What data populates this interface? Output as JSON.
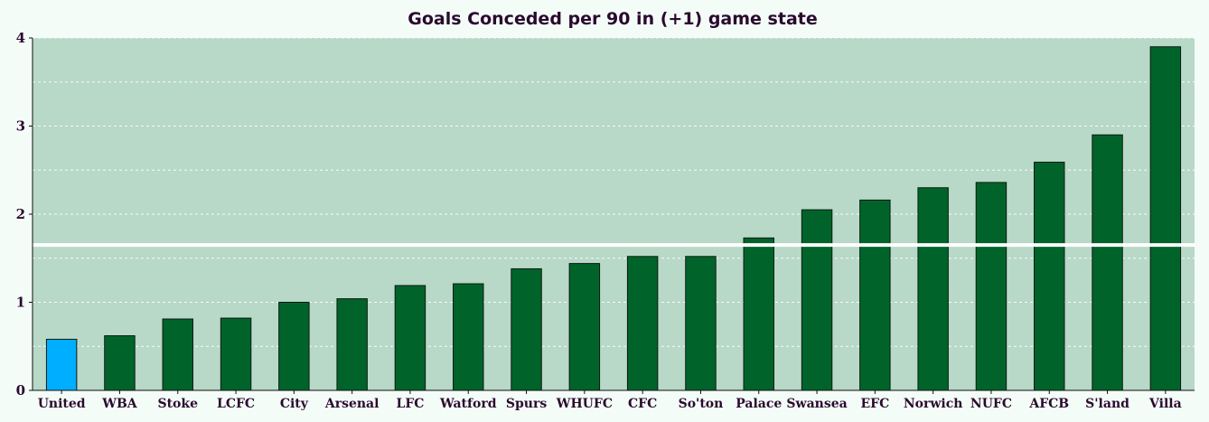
{
  "chart_data": {
    "type": "bar",
    "title": "Goals Conceded per 90 in (+1) game state",
    "xlabel": "",
    "ylabel": "",
    "ylim": [
      0,
      4
    ],
    "yticks": [
      0,
      1,
      2,
      3,
      4
    ],
    "grid": true,
    "reference_line": 1.65,
    "categories": [
      "United",
      "WBA",
      "Stoke",
      "LCFC",
      "City",
      "Arsenal",
      "LFC",
      "Watford",
      "Spurs",
      "WHUFC",
      "CFC",
      "So'ton",
      "Palace",
      "Swansea",
      "EFC",
      "Norwich",
      "NUFC",
      "AFCB",
      "S'land",
      "Villa"
    ],
    "values": [
      0.58,
      0.62,
      0.81,
      0.82,
      1.0,
      1.04,
      1.19,
      1.21,
      1.38,
      1.44,
      1.52,
      1.52,
      1.73,
      2.05,
      2.16,
      2.3,
      2.36,
      2.59,
      2.9,
      3.9
    ],
    "colors": {
      "highlight": "#00aeff",
      "bar": "#00642a",
      "plot_bg": "#b8d8c8",
      "reference_line": "#ffffff"
    },
    "highlight_index": 0
  }
}
